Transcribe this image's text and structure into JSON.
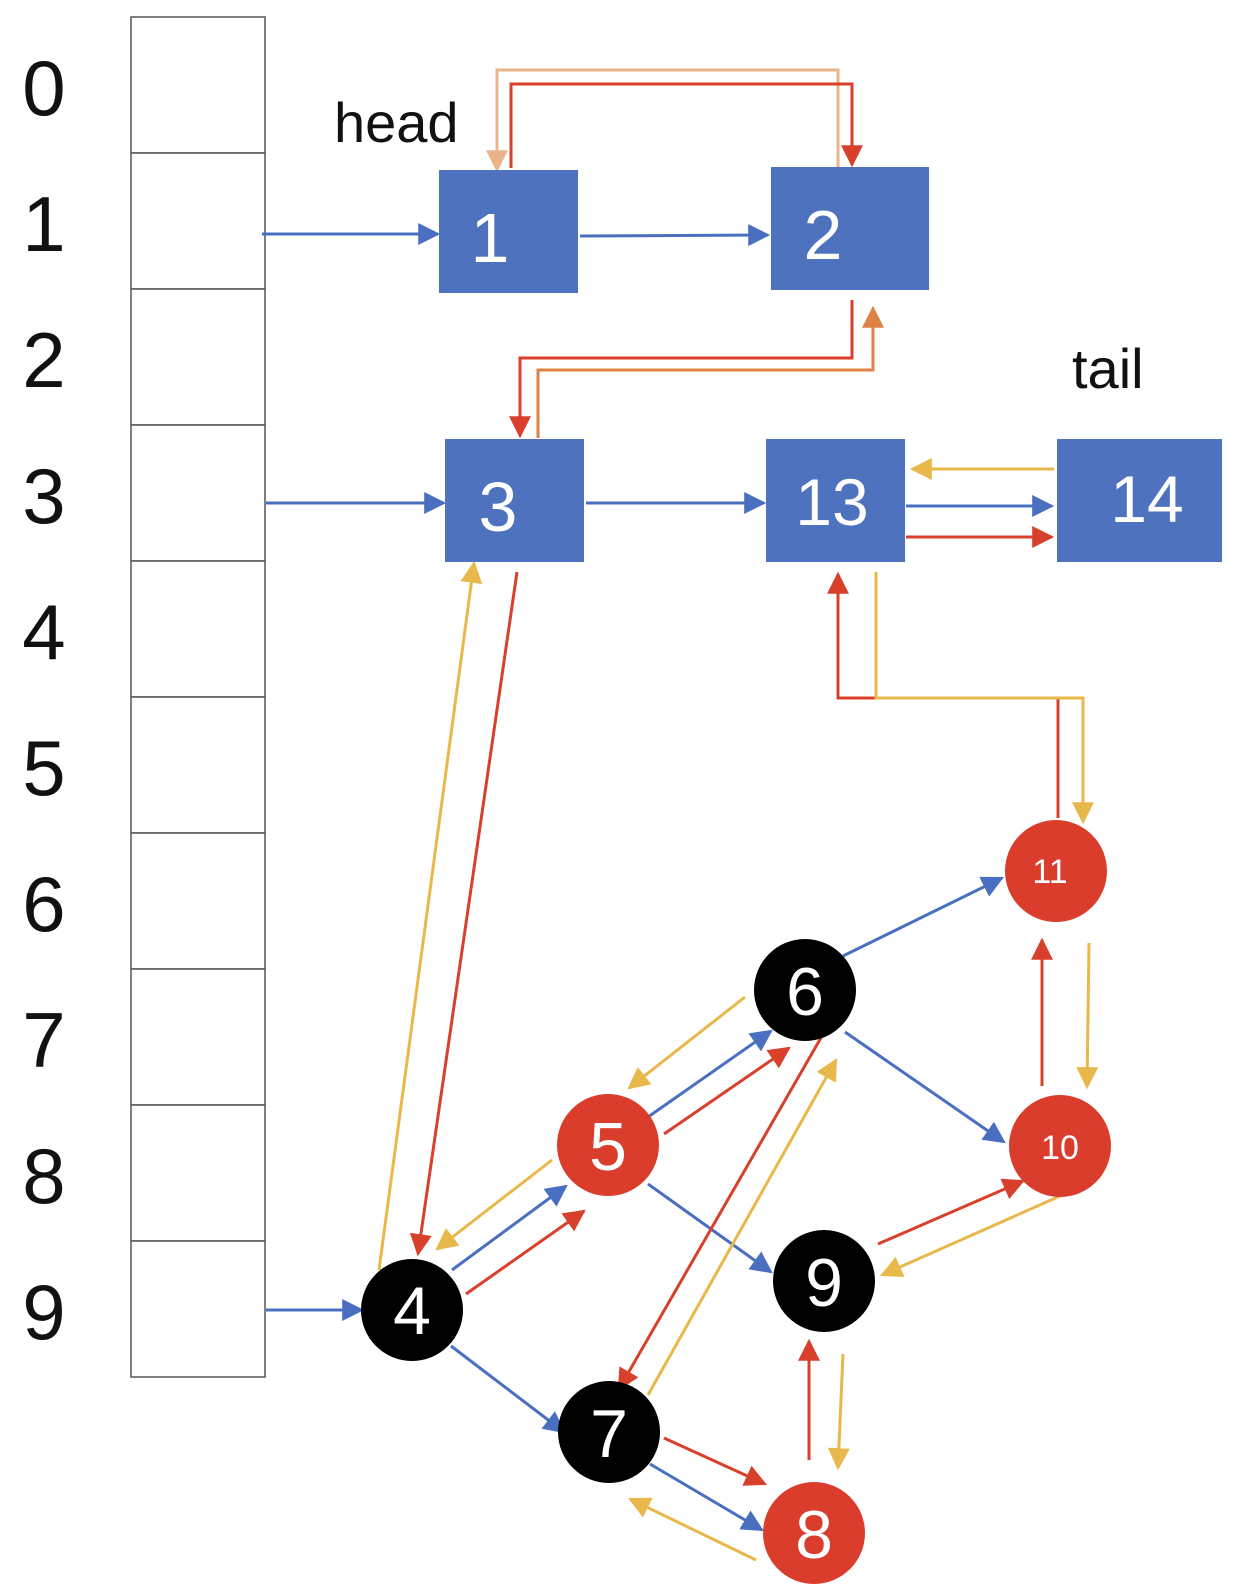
{
  "colors": {
    "next": "#4a6fc0",
    "before": "#e8b84a",
    "after": "#d9402c",
    "head_prev": "#e9b48a",
    "list_box": "#4e72be",
    "rb_red": "#da3d2c",
    "rb_black": "#000000"
  },
  "bucket_indices": [
    "0",
    "1",
    "2",
    "3",
    "4",
    "5",
    "6",
    "7",
    "8",
    "9"
  ],
  "labels": {
    "head": "head",
    "tail": "tail"
  },
  "list_nodes": [
    {
      "key": "n1",
      "label": "1"
    },
    {
      "key": "n2",
      "label": "2"
    },
    {
      "key": "n3",
      "label": "3"
    },
    {
      "key": "n13",
      "label": "13"
    },
    {
      "key": "n14",
      "label": "14"
    }
  ],
  "tree_nodes": [
    {
      "key": "t4",
      "label": "4",
      "color": "black"
    },
    {
      "key": "t5",
      "label": "5",
      "color": "red"
    },
    {
      "key": "t6",
      "label": "6",
      "color": "black"
    },
    {
      "key": "t7",
      "label": "7",
      "color": "black"
    },
    {
      "key": "t8",
      "label": "8",
      "color": "red"
    },
    {
      "key": "t9",
      "label": "9",
      "color": "black"
    },
    {
      "key": "t10",
      "label": "10",
      "color": "red"
    },
    {
      "key": "t11",
      "label": "11",
      "color": "red"
    }
  ]
}
